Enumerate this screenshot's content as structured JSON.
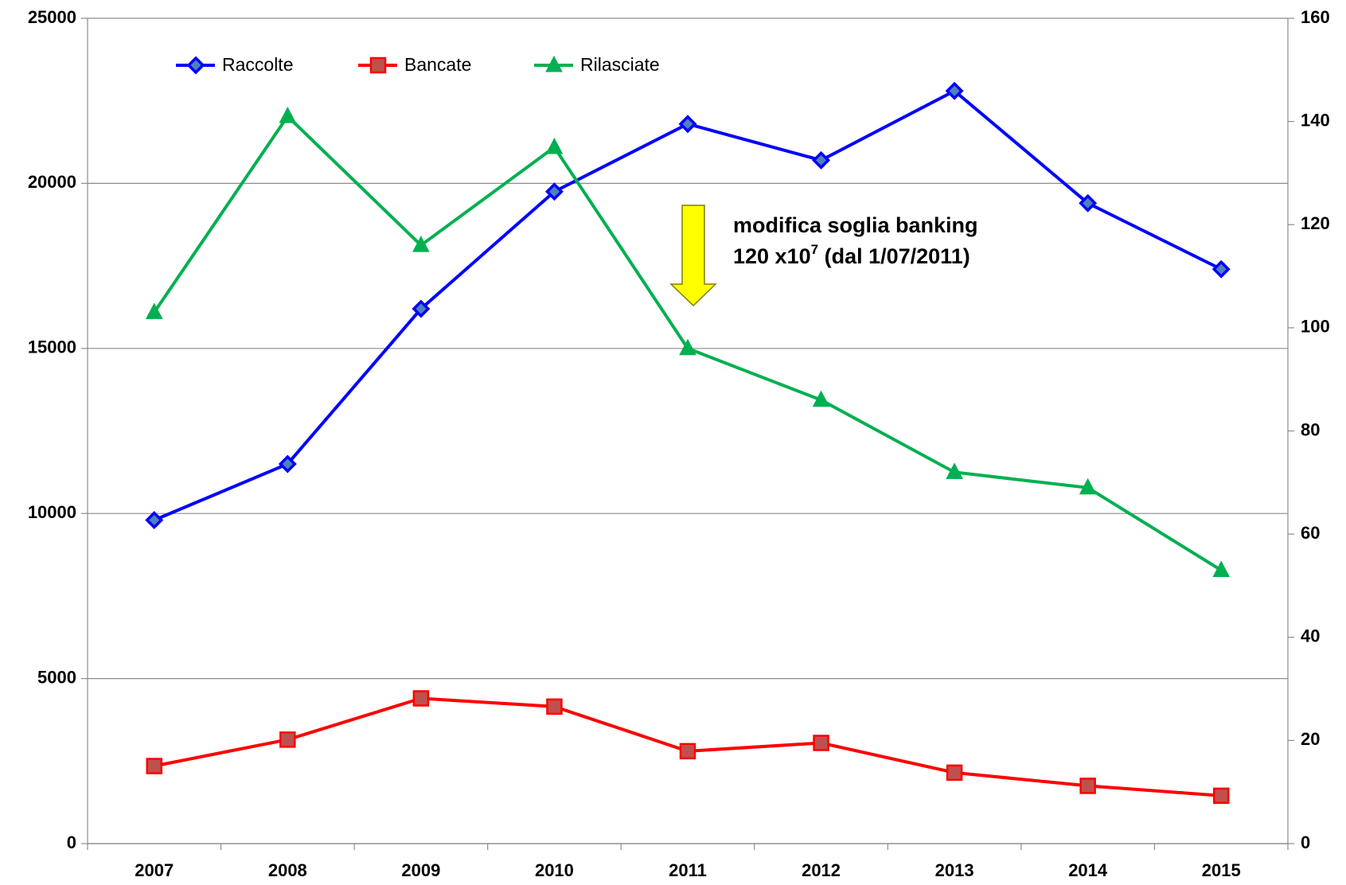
{
  "chart_data": {
    "type": "line",
    "categories": [
      "2007",
      "2008",
      "2009",
      "2010",
      "2011",
      "2012",
      "2013",
      "2014",
      "2015"
    ],
    "series": [
      {
        "name": "Raccolte",
        "color": "#0000ff",
        "marker": "diamond",
        "values": [
          9800,
          11500,
          16200,
          19750,
          21800,
          20700,
          22800,
          19400,
          17400
        ]
      },
      {
        "name": "Bancate",
        "color": "#ff0000",
        "marker": "square",
        "values": [
          2350,
          3150,
          4400,
          4150,
          2800,
          3050,
          2150,
          1750,
          1450
        ]
      },
      {
        "name": "Rilasciate",
        "color": "#00b050",
        "marker": "triangle",
        "axis": "y2",
        "values": [
          103,
          141,
          116,
          135,
          96,
          86,
          72,
          69,
          53
        ]
      }
    ],
    "ylim": [
      0,
      25000
    ],
    "yticks": [
      0,
      5000,
      10000,
      15000,
      20000,
      25000
    ],
    "y2lim": [
      0,
      160
    ],
    "y2ticks": [
      0,
      20,
      40,
      60,
      80,
      100,
      120,
      140,
      160
    ],
    "grid": true,
    "legend": "top-left",
    "annotation": {
      "line1": "modifica soglia banking",
      "line2": "120 x10",
      "superscript": "7",
      "line2_end": " (dal 1/07/2011)"
    }
  }
}
